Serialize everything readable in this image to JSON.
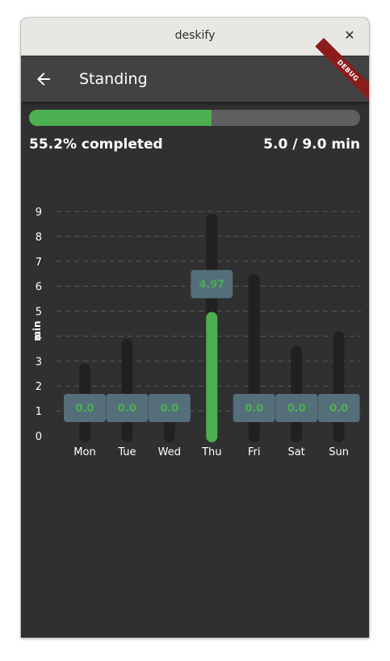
{
  "window": {
    "title": "deskify"
  },
  "appbar": {
    "title": "Standing",
    "debug_label": "DEBUG"
  },
  "progress": {
    "fraction": 0.552,
    "label": "55.2% completed",
    "amount": "5.0 / 9.0 min"
  },
  "colors": {
    "accent": "#4caf50",
    "tooltip_bg": "#546e7a",
    "track": "#212121"
  },
  "chart_data": {
    "type": "bar",
    "ylabel": "min",
    "ylim": [
      0,
      9
    ],
    "yticks": [
      "0",
      "1",
      "2",
      "3",
      "4",
      "5",
      "6",
      "7",
      "8",
      "9"
    ],
    "categories": [
      "Mon",
      "Tue",
      "Wed",
      "Thu",
      "Fri",
      "Sat",
      "Sun"
    ],
    "values": [
      0.0,
      0.0,
      0.0,
      4.97,
      0.0,
      0.0,
      0.0
    ],
    "targets": [
      2.9,
      3.9,
      0.7,
      8.9,
      6.5,
      3.6,
      4.2
    ],
    "tooltips": [
      "0.0",
      "0.0",
      "0.0",
      "4.97",
      "0.0",
      "0.0",
      "0.0"
    ],
    "grid": true
  }
}
